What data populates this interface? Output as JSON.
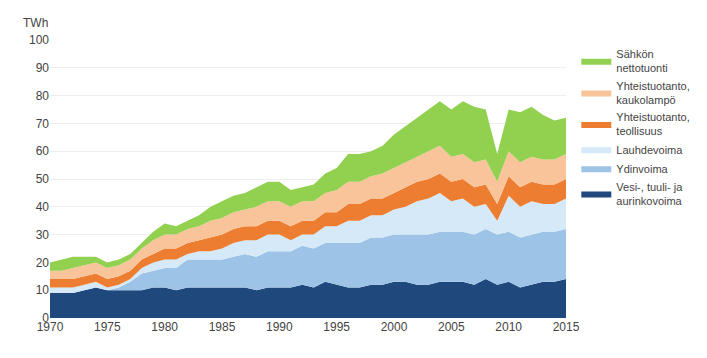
{
  "chart_data": {
    "type": "area",
    "stacked": true,
    "ylabel": "TWh",
    "x": [
      1970,
      1971,
      1972,
      1973,
      1974,
      1975,
      1976,
      1977,
      1978,
      1979,
      1980,
      1981,
      1982,
      1983,
      1984,
      1985,
      1986,
      1987,
      1988,
      1989,
      1990,
      1991,
      1992,
      1993,
      1994,
      1995,
      1996,
      1997,
      1998,
      1999,
      2000,
      2001,
      2002,
      2003,
      2004,
      2005,
      2006,
      2007,
      2008,
      2009,
      2010,
      2011,
      2012,
      2013,
      2014,
      2015
    ],
    "series": [
      {
        "name": "Vesi-, tuuli- ja\naurinkovoima",
        "color": "#1f497d",
        "values": [
          9,
          9,
          9,
          10,
          11,
          10,
          10,
          10,
          10,
          11,
          11,
          10,
          11,
          11,
          11,
          11,
          11,
          11,
          10,
          11,
          11,
          11,
          12,
          11,
          13,
          12,
          11,
          11,
          12,
          12,
          13,
          13,
          12,
          12,
          13,
          13,
          13,
          12,
          14,
          12,
          13,
          11,
          12,
          13,
          13,
          14
        ]
      },
      {
        "name": "Ydinvoima",
        "color": "#9dc3e6",
        "values": [
          0,
          0,
          0,
          0,
          0,
          0,
          1,
          3,
          6,
          6,
          7,
          8,
          10,
          10,
          10,
          10,
          11,
          12,
          12,
          13,
          13,
          13,
          14,
          14,
          14,
          15,
          16,
          16,
          17,
          17,
          17,
          17,
          18,
          18,
          18,
          18,
          18,
          18,
          18,
          18,
          18,
          18,
          18,
          18,
          18,
          18
        ]
      },
      {
        "name": "Lauhdevoima",
        "color": "#d6e9f8",
        "values": [
          2,
          2,
          2,
          2,
          2,
          1,
          1,
          1,
          2,
          3,
          3,
          3,
          2,
          3,
          3,
          4,
          5,
          5,
          6,
          6,
          6,
          4,
          4,
          5,
          6,
          6,
          8,
          8,
          8,
          8,
          9,
          10,
          12,
          13,
          14,
          11,
          12,
          10,
          9,
          5,
          13,
          11,
          12,
          10,
          10,
          11
        ]
      },
      {
        "name": "Yhteistuotanto,\nteollisuus",
        "color": "#ed7d31",
        "values": [
          3,
          3,
          3,
          3,
          3,
          3,
          3,
          3,
          3,
          3,
          4,
          4,
          4,
          4,
          5,
          5,
          5,
          5,
          5,
          5,
          5,
          5,
          5,
          5,
          5,
          5,
          6,
          6,
          6,
          6,
          6,
          7,
          7,
          7,
          7,
          7,
          7,
          7,
          7,
          6,
          7,
          7,
          7,
          7,
          7,
          7
        ]
      },
      {
        "name": "Yhteistuotanto,\nkaukolampö",
        "color": "#f9c49a",
        "values": [
          3,
          3,
          4,
          4,
          4,
          4,
          4,
          4,
          4,
          5,
          5,
          5,
          5,
          5,
          6,
          6,
          6,
          6,
          7,
          7,
          7,
          7,
          7,
          7,
          7,
          8,
          8,
          8,
          8,
          9,
          9,
          9,
          9,
          10,
          10,
          9,
          9,
          9,
          9,
          8,
          9,
          9,
          9,
          9,
          9,
          9
        ]
      },
      {
        "name": "Sähkön\nnettotuonti",
        "color": "#92d050",
        "values": [
          3,
          4,
          4,
          3,
          2,
          2,
          2,
          2,
          2,
          3,
          4,
          3,
          3,
          4,
          5,
          6,
          6,
          6,
          7,
          7,
          7,
          6,
          5,
          6,
          7,
          8,
          10,
          10,
          9,
          10,
          12,
          13,
          14,
          15,
          16,
          17,
          19,
          20,
          18,
          10,
          15,
          18,
          18,
          16,
          14,
          13
        ]
      }
    ],
    "xlim": [
      1970,
      2015
    ],
    "xticks": [
      1970,
      1975,
      1980,
      1985,
      1990,
      1995,
      2000,
      2005,
      2010,
      2015
    ],
    "ylim": [
      0,
      100
    ],
    "yticks": [
      0,
      10,
      20,
      30,
      40,
      50,
      60,
      70,
      80,
      90,
      100
    ],
    "grid": "y",
    "legend": "right"
  }
}
